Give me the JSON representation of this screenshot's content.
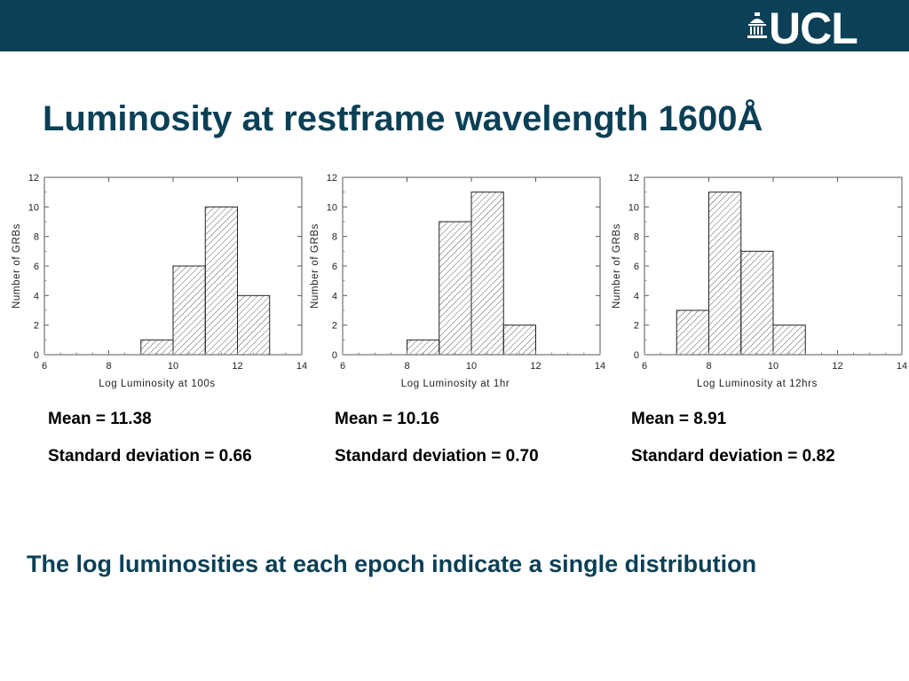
{
  "header": {
    "logo_text": "UCL",
    "bar_color": "#0b4056",
    "logo_icon": "ucl-portico-icon"
  },
  "slide": {
    "title": "Luminosity at restframe wavelength 1600Å",
    "conclusion": "The log luminosities at each epoch indicate a single distribution"
  },
  "stats": [
    {
      "mean": "Mean = 11.38",
      "sd": "Standard deviation = 0.66"
    },
    {
      "mean": "Mean = 10.16",
      "sd": "Standard deviation = 0.70"
    },
    {
      "mean": "Mean = 8.91",
      "sd": "Standard deviation = 0.82"
    }
  ],
  "chart_data": [
    {
      "type": "bar",
      "subtype": "histogram",
      "title": "",
      "xlabel": "Log Luminosity at 100s",
      "ylabel": "Number of GRBs",
      "xlim": [
        6,
        14
      ],
      "ylim": [
        0,
        12
      ],
      "xticks": [
        6,
        8,
        10,
        12,
        14
      ],
      "yticks": [
        0,
        2,
        4,
        6,
        8,
        10,
        12
      ],
      "grid": false,
      "fill": "hatched",
      "bins": [
        {
          "x0": 9,
          "x1": 10,
          "count": 1
        },
        {
          "x0": 10,
          "x1": 11,
          "count": 6
        },
        {
          "x0": 11,
          "x1": 12,
          "count": 10
        },
        {
          "x0": 12,
          "x1": 13,
          "count": 4
        }
      ]
    },
    {
      "type": "bar",
      "subtype": "histogram",
      "title": "",
      "xlabel": "Log Luminosity at 1hr",
      "ylabel": "Number of GRBs",
      "xlim": [
        6,
        14
      ],
      "ylim": [
        0,
        12
      ],
      "xticks": [
        6,
        8,
        10,
        12,
        14
      ],
      "yticks": [
        0,
        2,
        4,
        6,
        8,
        10,
        12
      ],
      "grid": false,
      "fill": "hatched",
      "bins": [
        {
          "x0": 8,
          "x1": 9,
          "count": 1
        },
        {
          "x0": 9,
          "x1": 10,
          "count": 9
        },
        {
          "x0": 10,
          "x1": 11,
          "count": 11
        },
        {
          "x0": 11,
          "x1": 12,
          "count": 2
        }
      ]
    },
    {
      "type": "bar",
      "subtype": "histogram",
      "title": "",
      "xlabel": "Log Luminosity at 12hrs",
      "ylabel": "Number of GRBs",
      "xlim": [
        6,
        14
      ],
      "ylim": [
        0,
        12
      ],
      "xticks": [
        6,
        8,
        10,
        12,
        14
      ],
      "yticks": [
        0,
        2,
        4,
        6,
        8,
        10,
        12
      ],
      "grid": false,
      "fill": "hatched",
      "bins": [
        {
          "x0": 7,
          "x1": 8,
          "count": 3
        },
        {
          "x0": 8,
          "x1": 9,
          "count": 11
        },
        {
          "x0": 9,
          "x1": 10,
          "count": 7
        },
        {
          "x0": 10,
          "x1": 11,
          "count": 2
        }
      ]
    }
  ]
}
